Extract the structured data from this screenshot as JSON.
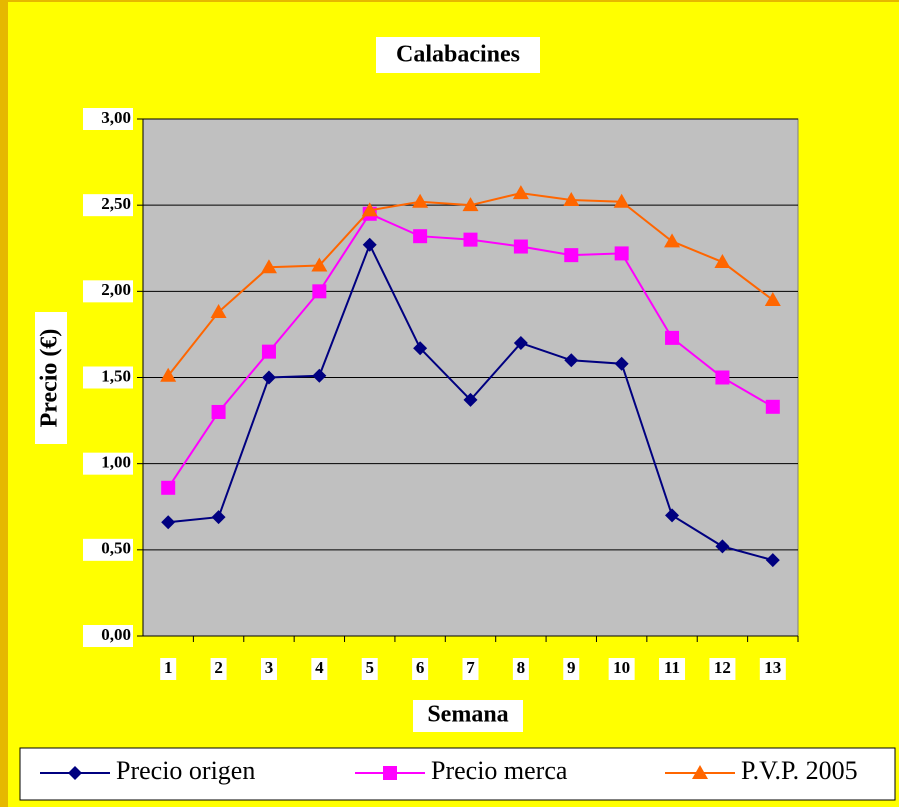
{
  "chart_data": {
    "type": "line",
    "title": "Calabacines",
    "x_label": "Semana",
    "y_label": "Precio (€)",
    "categories": [
      "1",
      "2",
      "3",
      "4",
      "5",
      "6",
      "7",
      "8",
      "9",
      "10",
      "11",
      "12",
      "13"
    ],
    "series": [
      {
        "name": "Precio origen",
        "color": "#000080",
        "marker": "diamond",
        "values": [
          0.66,
          0.69,
          1.5,
          1.51,
          2.27,
          1.67,
          1.37,
          1.7,
          1.6,
          1.58,
          0.7,
          0.52,
          0.44
        ]
      },
      {
        "name": "Precio merca",
        "color": "#FF00FF",
        "marker": "square",
        "values": [
          0.86,
          1.3,
          1.65,
          2.0,
          2.45,
          2.32,
          2.3,
          2.26,
          2.21,
          2.22,
          1.73,
          1.5,
          1.33
        ]
      },
      {
        "name": "P.V.P. 2005",
        "color": "#FF6600",
        "marker": "triangle",
        "values": [
          1.51,
          1.88,
          2.14,
          2.15,
          2.47,
          2.52,
          2.5,
          2.57,
          2.53,
          2.52,
          2.29,
          2.17,
          1.95
        ]
      }
    ],
    "ylim": [
      0,
      3
    ],
    "yticks": [
      {
        "value": 0,
        "label": "0,00"
      },
      {
        "value": 0.5,
        "label": "0,50"
      },
      {
        "value": 1,
        "label": "1,00"
      },
      {
        "value": 1.5,
        "label": "1,50"
      },
      {
        "value": 2,
        "label": "2,00"
      },
      {
        "value": 2.5,
        "label": "2,50"
      },
      {
        "value": 3,
        "label": "3,00"
      }
    ],
    "grid": true,
    "legend": "bottom",
    "plot_color": "#C0C0C0",
    "background": "#FFFF00"
  }
}
